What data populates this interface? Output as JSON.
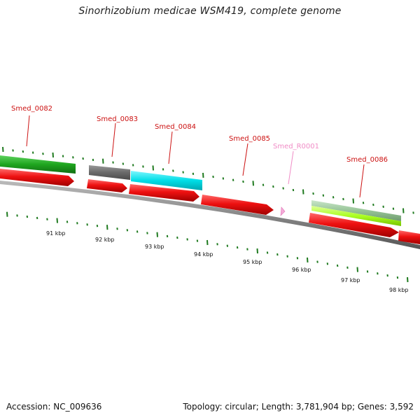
{
  "title": "Sinorhizobium medicae WSM419, complete genome",
  "footer": {
    "accession": "Accession: NC_009636",
    "summary": "Topology: circular; Length: 3,781,904 bp; Genes: 3,592"
  },
  "colors": {
    "cds": "#ee1111",
    "rrna": "#f5a9d8",
    "backbone": "#888888",
    "ticks": "#1f7a1f",
    "label": "#cc1111",
    "label_rrna": "#f08cc6"
  },
  "gene_labels": [
    {
      "name": "Smed_0082",
      "color": "#cc1111"
    },
    {
      "name": "Smed_0083",
      "color": "#cc1111"
    },
    {
      "name": "Smed_0084",
      "color": "#cc1111"
    },
    {
      "name": "Smed_0085",
      "color": "#cc1111"
    },
    {
      "name": "Smed_R0001",
      "color": "#f08cc6"
    },
    {
      "name": "Smed_0086",
      "color": "#cc1111"
    }
  ],
  "scale_labels": [
    "91 kbp",
    "92 kbp",
    "93 kbp",
    "94 kbp",
    "95 kbp",
    "96 kbp",
    "97 kbp",
    "98 kbp"
  ],
  "feature_tracks": [
    {
      "gene": "Smed_0082",
      "color": "#22aa22"
    },
    {
      "gene": "Smed_0083",
      "color": "#6d6d6d"
    },
    {
      "gene": "Smed_0084",
      "color": "#00dde6"
    },
    {
      "gene": "Smed_0086",
      "color": "#9fd19f"
    },
    {
      "gene": "Smed_0086",
      "color": "#aaff22"
    }
  ]
}
